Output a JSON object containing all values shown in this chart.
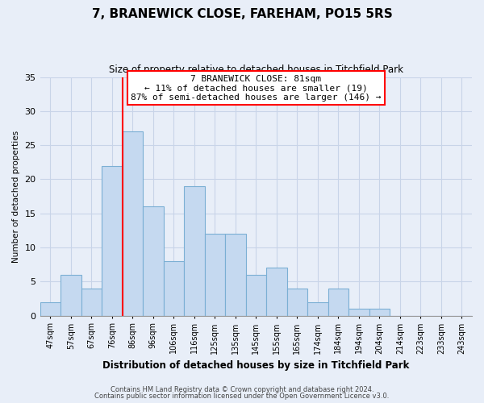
{
  "title": "7, BRANEWICK CLOSE, FAREHAM, PO15 5RS",
  "subtitle": "Size of property relative to detached houses in Titchfield Park",
  "xlabel": "Distribution of detached houses by size in Titchfield Park",
  "ylabel": "Number of detached properties",
  "bar_labels": [
    "47sqm",
    "57sqm",
    "67sqm",
    "76sqm",
    "86sqm",
    "96sqm",
    "106sqm",
    "116sqm",
    "125sqm",
    "135sqm",
    "145sqm",
    "155sqm",
    "165sqm",
    "174sqm",
    "184sqm",
    "194sqm",
    "204sqm",
    "214sqm",
    "223sqm",
    "233sqm",
    "243sqm"
  ],
  "bar_values": [
    2,
    6,
    4,
    22,
    27,
    16,
    8,
    19,
    12,
    12,
    6,
    7,
    4,
    2,
    4,
    1,
    1,
    0,
    0,
    0,
    0
  ],
  "bar_color": "#c5d9f0",
  "bar_edge_color": "#7bafd4",
  "vline_x": 3.5,
  "vline_color": "red",
  "annotation_text": "7 BRANEWICK CLOSE: 81sqm\n← 11% of detached houses are smaller (19)\n87% of semi-detached houses are larger (146) →",
  "annotation_box_color": "white",
  "annotation_box_edge": "red",
  "ylim": [
    0,
    35
  ],
  "yticks": [
    0,
    5,
    10,
    15,
    20,
    25,
    30,
    35
  ],
  "footer1": "Contains HM Land Registry data © Crown copyright and database right 2024.",
  "footer2": "Contains public sector information licensed under the Open Government Licence v3.0.",
  "background_color": "#e8eef8",
  "grid_color": "#c8d4e8"
}
